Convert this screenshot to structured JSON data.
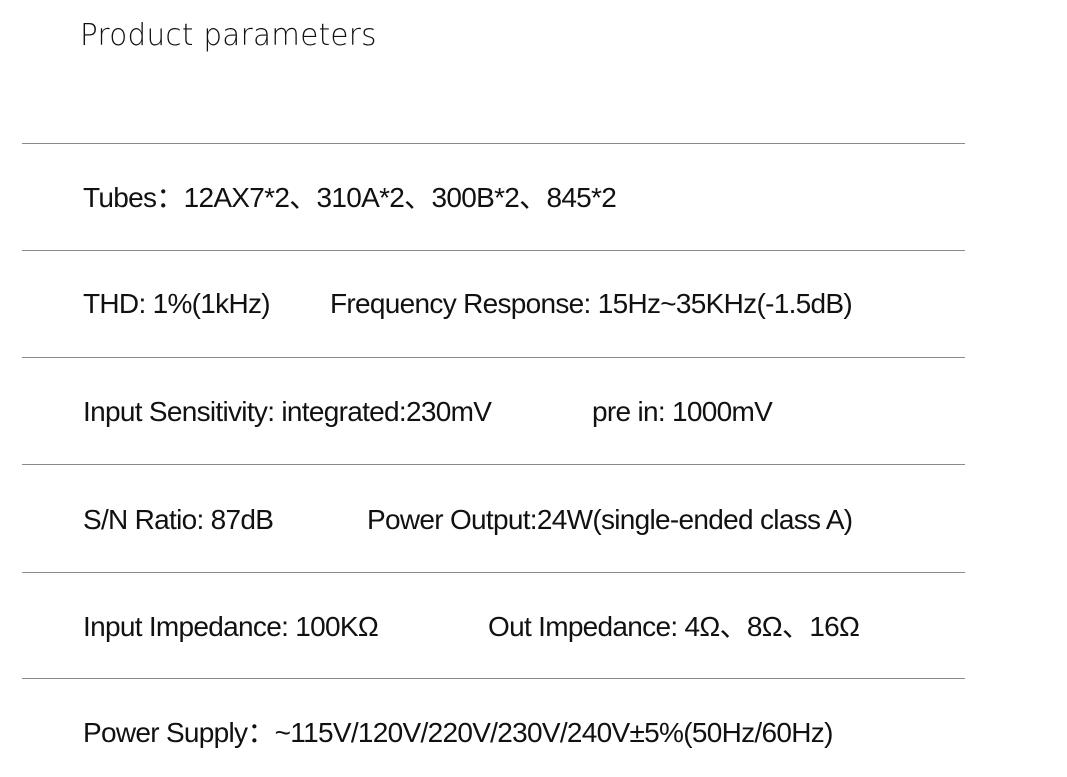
{
  "title": "Product parameters",
  "rows": [
    {
      "items": [
        "Tubes：12AX7*2、310A*2、300B*2、845*2"
      ]
    },
    {
      "items": [
        "THD: 1%(1kHz)",
        "Frequency Response: 15Hz~35KHz(-1.5dB)"
      ]
    },
    {
      "items": [
        "Input Sensitivity: integrated:230mV",
        "pre in: 1000mV"
      ]
    },
    {
      "items": [
        "S/N Ratio: 87dB",
        "Power Output:24W(single-ended class A)"
      ]
    },
    {
      "items": [
        "Input Impedance: 100KΩ",
        "Out Impedance: 4Ω、8Ω、16Ω"
      ]
    },
    {
      "items": [
        "Power Supply：~115V/120V/220V/230V/240V±5%(50Hz/60Hz)"
      ]
    }
  ],
  "colors": {
    "text": "#111111",
    "divider": "#8a8a8a"
  }
}
